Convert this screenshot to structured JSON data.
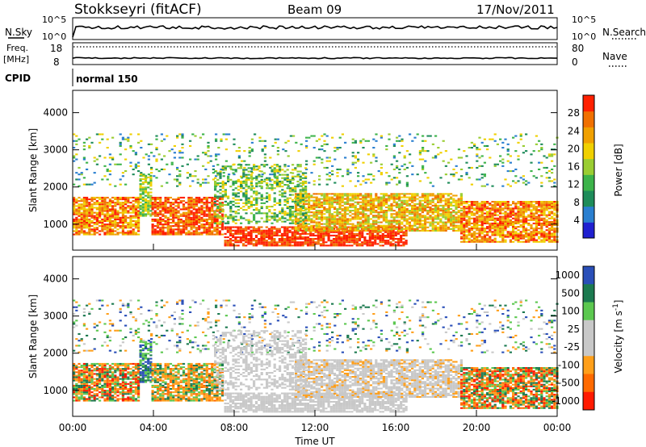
{
  "header": {
    "station": "Stokkseyri (fitACF)",
    "beam": "Beam 09",
    "date": "17/Nov/2011"
  },
  "nsky_panel": {
    "left_label": "N.Sky",
    "right_label": "N.Search",
    "left_ticks": [
      "10^5",
      "10^0"
    ],
    "right_ticks": [
      "10^5",
      "10^0"
    ]
  },
  "freq_panel": {
    "left_label_1": "Freq.",
    "left_label_2": "[MHz]",
    "right_label": "Nave",
    "left_ticks": [
      "18",
      "8"
    ],
    "right_ticks": [
      "80",
      "0"
    ]
  },
  "cpid_panel": {
    "label": "CPID",
    "mode": "normal 150"
  },
  "colors": {
    "power": [
      "#2020d0",
      "#2a7fd0",
      "#1e8c5a",
      "#3cb34a",
      "#9acd32",
      "#f0d000",
      "#f0a000",
      "#f07000",
      "#ff2000"
    ],
    "velocity": [
      "#ff1a00",
      "#ff6a00",
      "#ff9f1a",
      "#c8c8c8",
      "#c8c8c8",
      "#5cc850",
      "#1c7a50",
      "#2a4fb8"
    ]
  },
  "chart_data": [
    {
      "type": "heatmap",
      "name": "power",
      "ylabel": "Slant Range [km]",
      "ylim": [
        300,
        4600
      ],
      "yticks": [
        "1000",
        "2000",
        "3000",
        "4000"
      ],
      "xlim": [
        0,
        24
      ],
      "colorbar_label": "Power [dB]",
      "colorbar_ticks": [
        "4",
        "8",
        "12",
        "16",
        "20",
        "24",
        "28"
      ],
      "colorbar_range": [
        0,
        32
      ]
    },
    {
      "type": "heatmap",
      "name": "velocity",
      "ylabel": "Slant Range [km]",
      "ylim": [
        300,
        4600
      ],
      "yticks": [
        "1000",
        "2000",
        "3000",
        "4000"
      ],
      "xlim": [
        0,
        24
      ],
      "xticks": [
        "00:00",
        "04:00",
        "08:00",
        "12:00",
        "16:00",
        "20:00",
        "00:00"
      ],
      "xlabel": "Time UT",
      "colorbar_label": "Velocity [m s^-1]",
      "colorbar_ticks": [
        "1000",
        "500",
        "100",
        "25",
        "-25",
        "-100",
        "-500",
        "-1000"
      ]
    }
  ]
}
